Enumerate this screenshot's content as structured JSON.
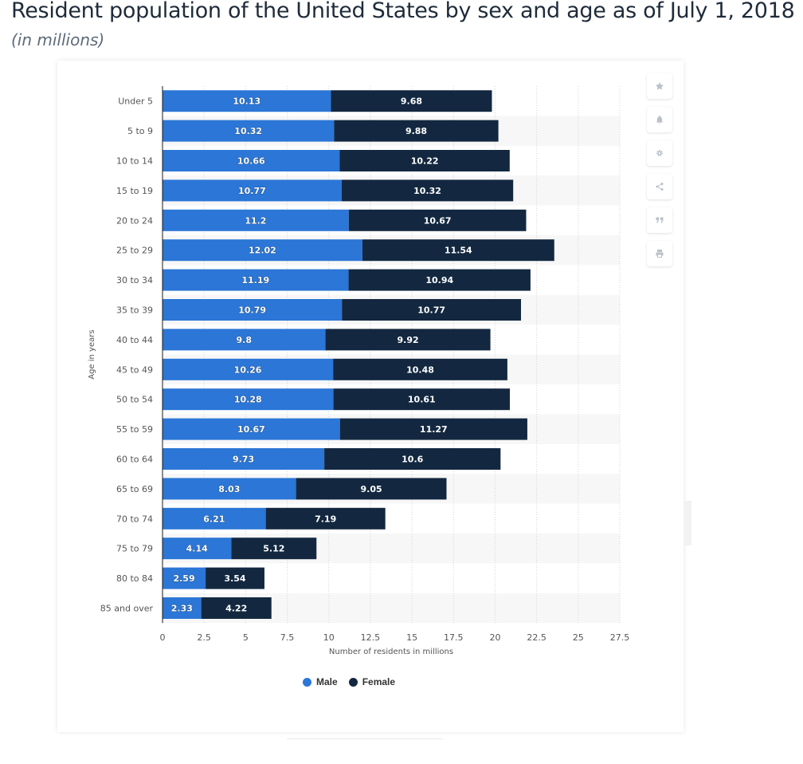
{
  "page": {
    "title": "Resident population of the United States by sex and age as of July 1, 2018",
    "subtitle": "(in millions)"
  },
  "toolbar": {
    "buttons": [
      {
        "name": "favorite-button",
        "icon": "star-icon"
      },
      {
        "name": "notification-button",
        "icon": "bell-icon"
      },
      {
        "name": "settings-button",
        "icon": "gear-icon"
      },
      {
        "name": "share-button",
        "icon": "share-icon"
      },
      {
        "name": "cite-button",
        "icon": "quote-icon"
      },
      {
        "name": "print-button",
        "icon": "print-icon"
      }
    ]
  },
  "colors": {
    "male": "#2b76d6",
    "female": "#132840",
    "stripe": "#f7f7f7",
    "grid": "#cfd4da",
    "axis": "#1a1a1a",
    "tick_text": "#555555"
  },
  "chart_data": {
    "type": "bar",
    "orientation": "horizontal",
    "stacked": true,
    "title": "Resident population of the United States by sex and age as of July 1, 2018",
    "subtitle": "(in millions)",
    "xlabel": "Number of residents in millions",
    "ylabel": "Age in years",
    "xlim": [
      0,
      27.5
    ],
    "xticks": [
      0,
      2.5,
      5,
      7.5,
      10,
      12.5,
      15,
      17.5,
      20,
      22.5,
      25,
      27.5
    ],
    "grid": true,
    "legend_position": "bottom",
    "categories": [
      "Under 5",
      "5 to 9",
      "10 to 14",
      "15 to 19",
      "20 to 24",
      "25 to 29",
      "30 to 34",
      "35 to 39",
      "40 to 44",
      "45 to 49",
      "50 to 54",
      "55 to 59",
      "60 to 64",
      "65 to 69",
      "70 to 74",
      "75 to 79",
      "80 to 84",
      "85 and over"
    ],
    "series": [
      {
        "name": "Male",
        "values": [
          10.13,
          10.32,
          10.66,
          10.77,
          11.2,
          12.02,
          11.19,
          10.79,
          9.8,
          10.26,
          10.28,
          10.67,
          9.73,
          8.03,
          6.21,
          4.14,
          2.59,
          2.33
        ]
      },
      {
        "name": "Female",
        "values": [
          9.68,
          9.88,
          10.22,
          10.32,
          10.67,
          11.54,
          10.94,
          10.77,
          9.92,
          10.48,
          10.61,
          11.27,
          10.6,
          9.05,
          7.19,
          5.12,
          3.54,
          4.22
        ]
      }
    ],
    "value_labels": [
      [
        "10.13",
        "10.32",
        "10.66",
        "10.77",
        "11.2",
        "12.02",
        "11.19",
        "10.79",
        "9.8",
        "10.26",
        "10.28",
        "10.67",
        "9.73",
        "8.03",
        "6.21",
        "4.14",
        "2.59",
        "2.33"
      ],
      [
        "9.68",
        "9.88",
        "10.22",
        "10.32",
        "10.67",
        "11.54",
        "10.94",
        "10.77",
        "9.92",
        "10.48",
        "10.61",
        "11.27",
        "10.6",
        "9.05",
        "7.19",
        "5.12",
        "3.54",
        "4.22"
      ]
    ],
    "xtick_labels": [
      "0",
      "2.5",
      "5",
      "7.5",
      "10",
      "12.5",
      "15",
      "17.5",
      "20",
      "22.5",
      "25",
      "27.5"
    ]
  },
  "legend": {
    "male_label": "Male",
    "female_label": "Female"
  }
}
